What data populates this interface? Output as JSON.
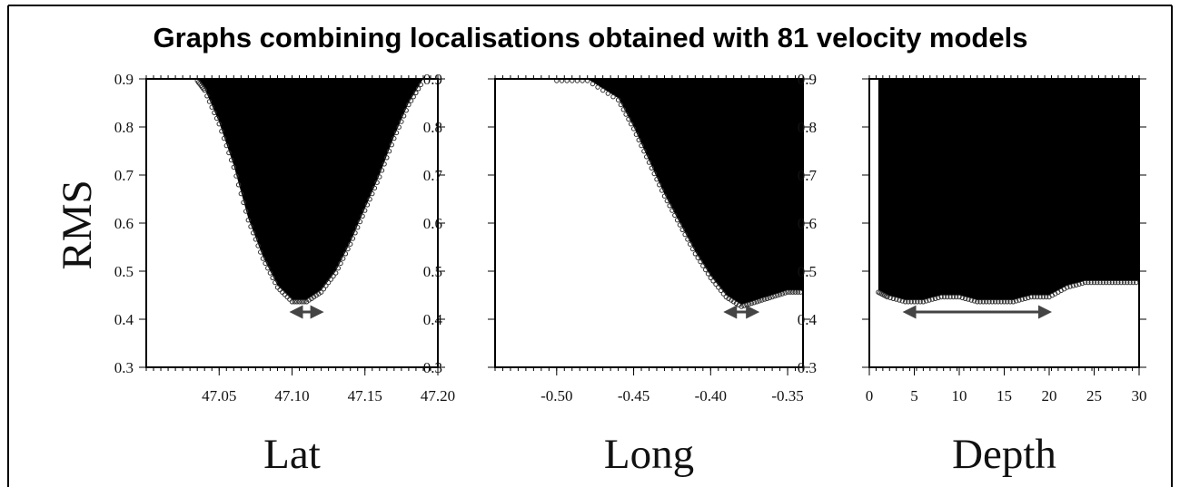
{
  "title": "Graphs combining localisations obtained with 81 velocity models",
  "ylabel": "RMS",
  "chart_data": [
    {
      "type": "scatter",
      "xlabel": "Lat",
      "ylabel": "RMS",
      "xlim": [
        47.0,
        47.2
      ],
      "ylim": [
        0.3,
        0.9
      ],
      "x_ticks": [
        "47.05",
        "47.10",
        "47.15",
        "47.20"
      ],
      "y_ticks": [
        "0.3",
        "0.4",
        "0.5",
        "0.6",
        "0.7",
        "0.8",
        "0.9"
      ],
      "envelope": {
        "x": [
          47.035,
          47.04,
          47.05,
          47.06,
          47.07,
          47.08,
          47.09,
          47.1,
          47.11,
          47.12,
          47.13,
          47.14,
          47.15,
          47.16,
          47.17,
          47.18,
          47.19
        ],
        "y": [
          0.9,
          0.88,
          0.81,
          0.72,
          0.61,
          0.53,
          0.47,
          0.44,
          0.44,
          0.46,
          0.5,
          0.56,
          0.63,
          0.7,
          0.78,
          0.85,
          0.9
        ]
      },
      "arrow": [
        47.1,
        47.12
      ],
      "arrow_y": 0.415
    },
    {
      "type": "scatter",
      "xlabel": "Long",
      "ylabel": "RMS",
      "xlim": [
        -0.54,
        -0.34
      ],
      "ylim": [
        0.3,
        0.9
      ],
      "x_ticks": [
        "-0.50",
        "-0.45",
        "-0.40",
        "-0.35"
      ],
      "y_ticks": [
        "0.3",
        "0.4",
        "0.5",
        "0.6",
        "0.7",
        "0.8",
        "0.9"
      ],
      "envelope": {
        "x": [
          -0.5,
          -0.48,
          -0.46,
          -0.45,
          -0.44,
          -0.43,
          -0.42,
          -0.41,
          -0.4,
          -0.39,
          -0.38,
          -0.37,
          -0.36,
          -0.35,
          -0.34
        ],
        "y": [
          0.9,
          0.9,
          0.86,
          0.8,
          0.73,
          0.66,
          0.6,
          0.54,
          0.49,
          0.45,
          0.43,
          0.44,
          0.45,
          0.46,
          0.46
        ]
      },
      "arrow": [
        -0.39,
        -0.37
      ],
      "arrow_y": 0.415
    },
    {
      "type": "scatter",
      "xlabel": "Depth",
      "ylabel": "RMS",
      "xlim": [
        0,
        30
      ],
      "ylim": [
        0.3,
        0.9
      ],
      "x_ticks": [
        "0",
        "5",
        "10",
        "15",
        "20",
        "25",
        "30"
      ],
      "y_ticks": [
        "0.3",
        "0.4",
        "0.5",
        "0.6",
        "0.7",
        "0.8",
        "0.9"
      ],
      "envelope": {
        "x": [
          1,
          2,
          4,
          6,
          8,
          10,
          12,
          14,
          16,
          18,
          20,
          22,
          24,
          26,
          28,
          30
        ],
        "y": [
          0.46,
          0.45,
          0.44,
          0.44,
          0.45,
          0.45,
          0.44,
          0.44,
          0.44,
          0.45,
          0.45,
          0.47,
          0.48,
          0.48,
          0.48,
          0.48
        ]
      },
      "arrow": [
        4,
        20
      ],
      "arrow_y": 0.415
    }
  ]
}
